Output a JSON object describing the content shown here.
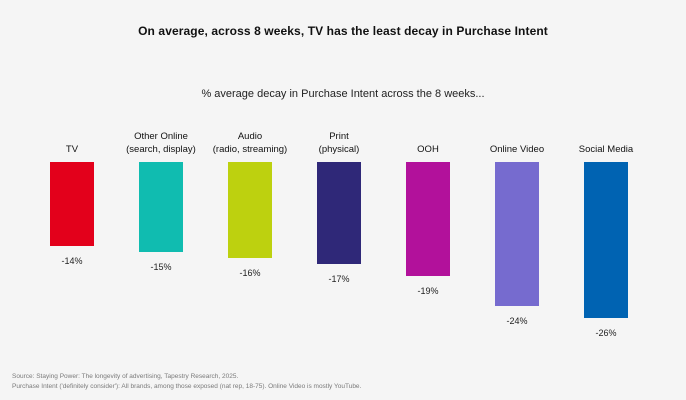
{
  "title": "On average, across 8 weeks, TV has the least decay in Purchase Intent",
  "subtitle": "% average decay in Purchase Intent across the 8 weeks...",
  "chart_data": {
    "type": "bar",
    "title": "% average decay in Purchase Intent across the 8 weeks...",
    "xlabel": "",
    "ylabel": "",
    "ylim": [
      -30,
      0
    ],
    "grid": false,
    "categories": [
      [
        "TV"
      ],
      [
        "Other Online",
        "(search, display)"
      ],
      [
        "Audio",
        "(radio, streaming)"
      ],
      [
        "Print",
        "(physical)"
      ],
      [
        "OOH"
      ],
      [
        "Online Video"
      ],
      [
        "Social Media"
      ]
    ],
    "values": [
      -14,
      -15,
      -16,
      -17,
      -19,
      -24,
      -26
    ],
    "value_labels": [
      "-14%",
      "-15%",
      "-16%",
      "-17%",
      "-19%",
      "-24%",
      "-26%"
    ],
    "colors": [
      "#e3001b",
      "#10bcb0",
      "#bdd10f",
      "#2f2878",
      "#b2119b",
      "#766bcf",
      "#0063b2"
    ]
  },
  "footnotes": [
    "Source: Staying Power: The longevity of advertising, Tapestry Research, 2025.",
    "Purchase Intent ('definitely consider'): All brands, among those exposed (nat rep, 18-75). Online Video is mostly YouTube."
  ]
}
